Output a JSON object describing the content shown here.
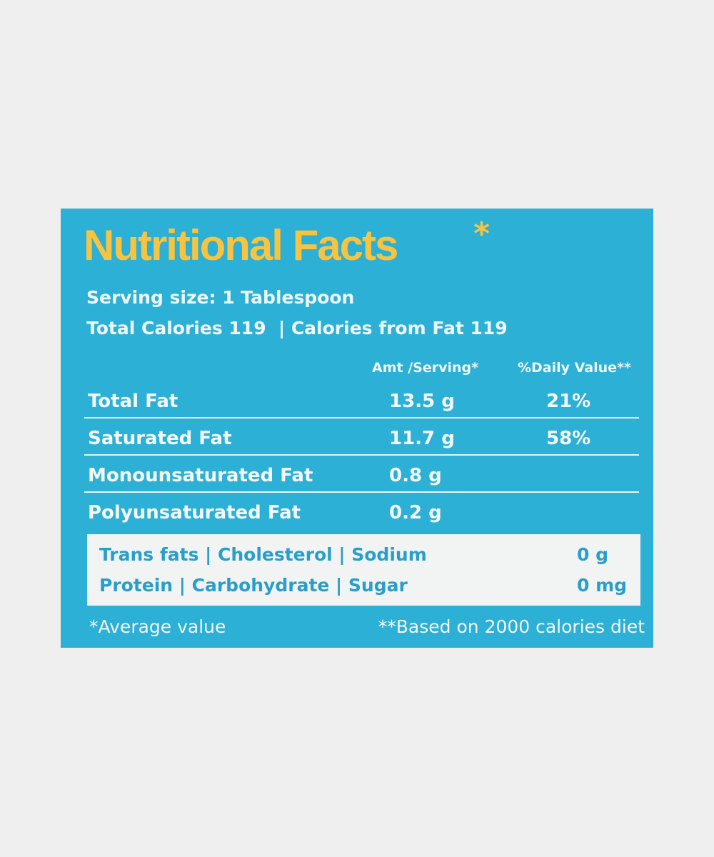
{
  "title": "Nutritional Facts",
  "title_mark": "*",
  "serving_size": "Serving size: 1 Tablespoon",
  "calories": "Total Calories 119  | Calories from Fat 119",
  "table": {
    "header": {
      "amount": "Amt /Serving*",
      "daily": "%Daily Value**"
    },
    "rows": [
      [
        "Total Fat",
        "13.5 g",
        "21%"
      ],
      [
        "Saturated Fat",
        "11.7 g",
        "58%"
      ],
      [
        "Monounsaturated Fat",
        "0.8 g"
      ],
      [
        "Polyunsaturated Fat",
        "0.2 g"
      ]
    ]
  },
  "box": [
    {
      "label": "Trans fats | Cholesterol | Sodium",
      "value": "0 g"
    },
    {
      "label": "Protein | Carbohydrate | Sugar",
      "value": "0 mg"
    }
  ],
  "footnotes": [
    "*Average value",
    "**Based on 2000 calories diet"
  ]
}
